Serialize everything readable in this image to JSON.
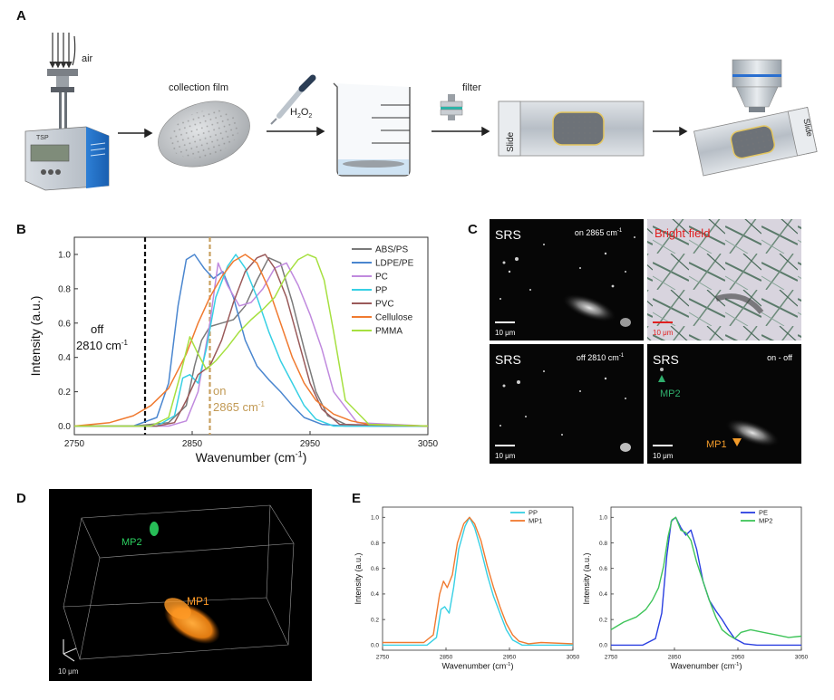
{
  "panel_labels": {
    "a": "A",
    "b": "B",
    "c": "C",
    "d": "D",
    "e": "E"
  },
  "panel_a": {
    "air": "air",
    "device": "TSP",
    "collection_film": "collection film",
    "reagent": "H",
    "reagent_sub": "2",
    "reagent_tail": "O",
    "reagent_sub2": "2",
    "filter": "filter",
    "slide": "Slide",
    "slide2": "Slide"
  },
  "panel_b": {
    "off_label1": "off",
    "off_label2": "2810 cm",
    "off_sup": "-1",
    "on_label1": "on",
    "on_label2": "2865 cm",
    "on_sup": "-1"
  },
  "panel_c": {
    "srs": "SRS",
    "on_caption": "on 2865 cm",
    "on_sup": "-1",
    "bright": "Bright field",
    "off_caption": "off 2810 cm",
    "off_sup": "-1",
    "diff_caption": "on - off",
    "mp1": "MP1",
    "mp2": "MP2",
    "scale": "10 μm",
    "mp1_color": "#f29b2a",
    "mp2_color": "#2fae6c"
  },
  "panel_d": {
    "mp1": "MP1",
    "mp2": "MP2",
    "scale": "10 μm"
  },
  "chart_data": [
    {
      "type": "line",
      "id": "B",
      "xlabel": "Wavenumber (cm",
      "xlabel_sup": "-1",
      "xlabel_tail": ")",
      "ylabel": "Intensity (a.u.)",
      "xlim": [
        2750,
        3050
      ],
      "ylim": [
        -0.05,
        1.1
      ],
      "xticks": [
        2750,
        2850,
        2950,
        3050
      ],
      "yticks": [
        0.0,
        0.2,
        0.4,
        0.6,
        0.8,
        1.0
      ],
      "ytick_labels": [
        "0.0",
        "0.2",
        "0.4",
        "0.6",
        "0.8",
        "1.0"
      ],
      "vlines": [
        {
          "x": 2810,
          "color": "#111111",
          "style": "dashed"
        },
        {
          "x": 2865,
          "color": "#c8a060",
          "style": "dashed"
        }
      ],
      "legend": "top-right",
      "series": [
        {
          "name": "ABS/PS",
          "color": "#7a7a7a",
          "x": [
            2750,
            2800,
            2830,
            2845,
            2852,
            2858,
            2865,
            2875,
            2885,
            2895,
            2905,
            2915,
            2925,
            2935,
            2945,
            2955,
            2965,
            2980,
            3000,
            3050
          ],
          "y": [
            0.0,
            0.0,
            0.02,
            0.12,
            0.35,
            0.5,
            0.58,
            0.6,
            0.62,
            0.7,
            0.85,
            0.98,
            0.95,
            0.72,
            0.45,
            0.2,
            0.06,
            0.01,
            0.0,
            0.0
          ]
        },
        {
          "name": "LDPE/PE",
          "color": "#4a86cf",
          "x": [
            2750,
            2800,
            2820,
            2830,
            2838,
            2845,
            2852,
            2860,
            2868,
            2876,
            2885,
            2895,
            2905,
            2915,
            2925,
            2935,
            2945,
            2960,
            2980,
            3050
          ],
          "y": [
            0.0,
            0.0,
            0.05,
            0.25,
            0.7,
            0.97,
            1.0,
            0.92,
            0.86,
            0.9,
            0.75,
            0.5,
            0.35,
            0.27,
            0.2,
            0.12,
            0.05,
            0.01,
            0.0,
            0.0
          ]
        },
        {
          "name": "PC",
          "color": "#c08ade",
          "x": [
            2750,
            2830,
            2845,
            2855,
            2865,
            2872,
            2880,
            2890,
            2900,
            2910,
            2920,
            2930,
            2940,
            2950,
            2960,
            2970,
            2990,
            3050
          ],
          "y": [
            0.0,
            0.0,
            0.03,
            0.2,
            0.6,
            0.95,
            0.82,
            0.7,
            0.72,
            0.8,
            0.92,
            0.95,
            0.82,
            0.65,
            0.45,
            0.2,
            0.02,
            0.0
          ]
        },
        {
          "name": "PP",
          "color": "#37d0e4",
          "x": [
            2750,
            2820,
            2835,
            2842,
            2848,
            2855,
            2862,
            2870,
            2880,
            2887,
            2895,
            2905,
            2915,
            2925,
            2935,
            2945,
            2955,
            2970,
            3050
          ],
          "y": [
            0.0,
            0.0,
            0.06,
            0.28,
            0.3,
            0.25,
            0.45,
            0.75,
            0.93,
            1.0,
            0.92,
            0.75,
            0.55,
            0.38,
            0.25,
            0.12,
            0.04,
            0.0,
            0.0
          ]
        },
        {
          "name": "PVC",
          "color": "#9a5a5a",
          "x": [
            2750,
            2820,
            2835,
            2845,
            2855,
            2865,
            2875,
            2885,
            2895,
            2905,
            2912,
            2920,
            2930,
            2940,
            2950,
            2960,
            2975,
            3050
          ],
          "y": [
            0.0,
            0.0,
            0.02,
            0.15,
            0.3,
            0.35,
            0.5,
            0.72,
            0.9,
            0.98,
            1.0,
            0.92,
            0.75,
            0.5,
            0.25,
            0.1,
            0.01,
            0.0
          ]
        },
        {
          "name": "Cellulose",
          "color": "#f07a30",
          "x": [
            2750,
            2780,
            2800,
            2815,
            2830,
            2845,
            2855,
            2865,
            2875,
            2885,
            2895,
            2905,
            2915,
            2925,
            2935,
            2945,
            2955,
            2970,
            2985,
            3000,
            3050
          ],
          "y": [
            0.0,
            0.02,
            0.06,
            0.12,
            0.22,
            0.42,
            0.6,
            0.75,
            0.87,
            0.96,
            1.0,
            0.95,
            0.8,
            0.6,
            0.4,
            0.25,
            0.15,
            0.07,
            0.03,
            0.01,
            0.0
          ]
        },
        {
          "name": "PMMA",
          "color": "#a6e040",
          "x": [
            2750,
            2815,
            2830,
            2840,
            2848,
            2855,
            2862,
            2870,
            2880,
            2890,
            2900,
            2910,
            2920,
            2930,
            2940,
            2948,
            2955,
            2962,
            2970,
            2980,
            3000,
            3050
          ],
          "y": [
            0.0,
            0.0,
            0.05,
            0.3,
            0.52,
            0.42,
            0.33,
            0.38,
            0.46,
            0.55,
            0.62,
            0.68,
            0.75,
            0.88,
            0.97,
            1.0,
            0.98,
            0.85,
            0.55,
            0.15,
            0.01,
            0.0
          ]
        }
      ]
    },
    {
      "type": "line",
      "id": "E1",
      "xlabel": "Wavenumber (cm",
      "xlabel_sup": "-1",
      "xlabel_tail": ")",
      "ylabel": "Intensity (a.u.)",
      "xlim": [
        2750,
        3050
      ],
      "ylim": [
        -0.04,
        1.08
      ],
      "xticks": [
        2750,
        2850,
        2950,
        3050
      ],
      "yticks": [
        0.0,
        0.2,
        0.4,
        0.6,
        0.8,
        1.0
      ],
      "ytick_labels": [
        "0.0",
        "0.2",
        "0.4",
        "0.6",
        "0.8",
        "1.0"
      ],
      "legend": "top-right",
      "series": [
        {
          "name": "PP",
          "color": "#37d0e4",
          "x": [
            2750,
            2820,
            2835,
            2842,
            2848,
            2855,
            2862,
            2870,
            2880,
            2887,
            2895,
            2905,
            2915,
            2925,
            2935,
            2945,
            2955,
            2970,
            3050
          ],
          "y": [
            0.0,
            0.0,
            0.06,
            0.28,
            0.3,
            0.25,
            0.45,
            0.75,
            0.93,
            1.0,
            0.92,
            0.75,
            0.55,
            0.38,
            0.25,
            0.12,
            0.04,
            0.0,
            0.0
          ]
        },
        {
          "name": "MP1",
          "color": "#f07a30",
          "x": [
            2750,
            2815,
            2830,
            2840,
            2846,
            2852,
            2860,
            2868,
            2878,
            2887,
            2895,
            2905,
            2915,
            2925,
            2935,
            2945,
            2955,
            2965,
            2980,
            3000,
            3050
          ],
          "y": [
            0.02,
            0.02,
            0.08,
            0.4,
            0.5,
            0.45,
            0.55,
            0.8,
            0.95,
            1.0,
            0.95,
            0.82,
            0.62,
            0.45,
            0.3,
            0.17,
            0.08,
            0.03,
            0.01,
            0.02,
            0.01
          ]
        }
      ]
    },
    {
      "type": "line",
      "id": "E2",
      "xlabel": "Wavenumber (cm",
      "xlabel_sup": "-1",
      "xlabel_tail": ")",
      "ylabel": "Intensity (a.u.)",
      "xlim": [
        2750,
        3050
      ],
      "ylim": [
        -0.04,
        1.08
      ],
      "xticks": [
        2750,
        2850,
        2950,
        3050
      ],
      "yticks": [
        0.0,
        0.2,
        0.4,
        0.6,
        0.8,
        1.0
      ],
      "ytick_labels": [
        "0.0",
        "0.2",
        "0.4",
        "0.6",
        "0.8",
        "1.0"
      ],
      "legend": "top-right",
      "series": [
        {
          "name": "PE",
          "color": "#2a3fe0",
          "x": [
            2750,
            2800,
            2820,
            2830,
            2838,
            2845,
            2852,
            2860,
            2868,
            2876,
            2885,
            2895,
            2905,
            2915,
            2925,
            2935,
            2945,
            2960,
            2980,
            3050
          ],
          "y": [
            0.0,
            0.0,
            0.05,
            0.25,
            0.7,
            0.97,
            1.0,
            0.92,
            0.86,
            0.9,
            0.75,
            0.5,
            0.35,
            0.27,
            0.2,
            0.12,
            0.05,
            0.01,
            0.0,
            0.0
          ]
        },
        {
          "name": "MP2",
          "color": "#3fc45a",
          "x": [
            2750,
            2770,
            2790,
            2805,
            2815,
            2825,
            2833,
            2840,
            2846,
            2852,
            2860,
            2868,
            2876,
            2885,
            2895,
            2905,
            2915,
            2925,
            2935,
            2945,
            2955,
            2970,
            2990,
            3010,
            3030,
            3050
          ],
          "y": [
            0.12,
            0.18,
            0.22,
            0.28,
            0.35,
            0.45,
            0.62,
            0.85,
            0.98,
            1.0,
            0.9,
            0.88,
            0.82,
            0.65,
            0.5,
            0.35,
            0.22,
            0.12,
            0.08,
            0.05,
            0.1,
            0.12,
            0.1,
            0.08,
            0.06,
            0.07
          ]
        }
      ]
    }
  ]
}
